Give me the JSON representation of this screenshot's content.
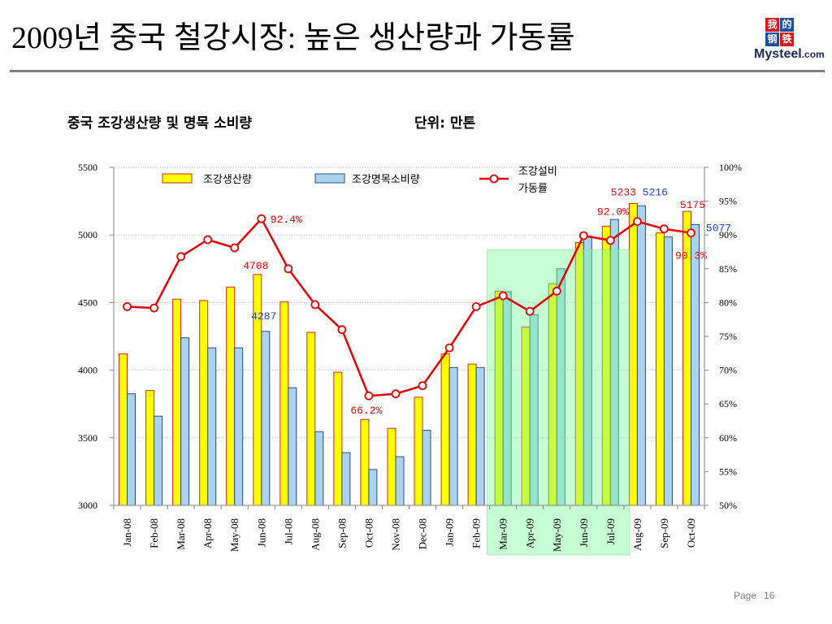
{
  "page_title": "2009년 중국 철강시장: 높은 생산량과 가동률",
  "logo": {
    "chars": [
      "我",
      "的",
      "钢",
      "铁"
    ],
    "brand": "Mysteel",
    "domain": ".com"
  },
  "footer": {
    "page_label": "Page",
    "page_number": "16"
  },
  "colors": {
    "highlight": "#78ff96"
  },
  "chart_data": {
    "type": "bar",
    "title": "중국 조강생산량 및 명목 소비량",
    "unit": "단위: 만톤",
    "categories": [
      "Jan-08",
      "Feb-08",
      "Mar-08",
      "Apr-08",
      "May-08",
      "Jun-08",
      "Jul-08",
      "Aug-08",
      "Sep-08",
      "Oct-08",
      "Nov-08",
      "Dec-08",
      "Jan-09",
      "Feb-09",
      "Mar-09",
      "Apr-09",
      "May-09",
      "Jun-09",
      "Jul-09",
      "Aug-09",
      "Sep-09",
      "Oct-09"
    ],
    "series": [
      {
        "name": "조강생산량",
        "type": "bar",
        "axis": "left",
        "color": "#ffff00",
        "border": "#d42a1a",
        "label_color": "#e60000",
        "values": [
          4120,
          3850,
          4525,
          4515,
          4615,
          4708,
          4505,
          4280,
          3985,
          3635,
          3570,
          3800,
          4120,
          4045,
          4585,
          4320,
          4640,
          4945,
          5065,
          5233,
          5015,
          5175
        ]
      },
      {
        "name": "조강명목소비량",
        "type": "bar",
        "axis": "left",
        "color": "#acd3ee",
        "border": "#2a4b8d",
        "label_color": "#1f3fbf",
        "values": [
          3825,
          3660,
          4240,
          4165,
          4165,
          4287,
          3870,
          3545,
          3390,
          3265,
          3360,
          3555,
          4020,
          4020,
          4580,
          4410,
          4750,
          4990,
          5115,
          5216,
          4985,
          5077
        ]
      },
      {
        "name": "조강설비 가동률",
        "type": "line",
        "axis": "right",
        "color": "#e60000",
        "label_color": "#e60000",
        "values": [
          79.4,
          79.2,
          86.8,
          89.3,
          88.1,
          92.4,
          85.0,
          79.7,
          76.0,
          66.2,
          66.5,
          67.7,
          73.3,
          79.4,
          81.0,
          78.7,
          81.7,
          89.9,
          89.2,
          92.0,
          90.9,
          90.3
        ]
      }
    ],
    "y_left": {
      "range": [
        3000,
        5500
      ],
      "ticks": [
        3000,
        3500,
        4000,
        4500,
        5000,
        5500
      ]
    },
    "y_right": {
      "range": [
        50,
        100
      ],
      "ticks": [
        50,
        55,
        60,
        65,
        70,
        75,
        80,
        85,
        90,
        95,
        100
      ],
      "tick_suffix": "%"
    },
    "data_labels": [
      {
        "series": 0,
        "index": 5
      },
      {
        "series": 1,
        "index": 5
      },
      {
        "series": 2,
        "index": 5
      },
      {
        "series": 2,
        "index": 9
      },
      {
        "series": 0,
        "index": 19
      },
      {
        "series": 1,
        "index": 19
      },
      {
        "series": 2,
        "index": 19
      },
      {
        "series": 0,
        "index": 21
      },
      {
        "series": 1,
        "index": 21
      },
      {
        "series": 2,
        "index": 21
      }
    ],
    "highlight": {
      "from": "Mar-09",
      "to": "Jul-09"
    },
    "grid": true,
    "legend_position": "top"
  }
}
